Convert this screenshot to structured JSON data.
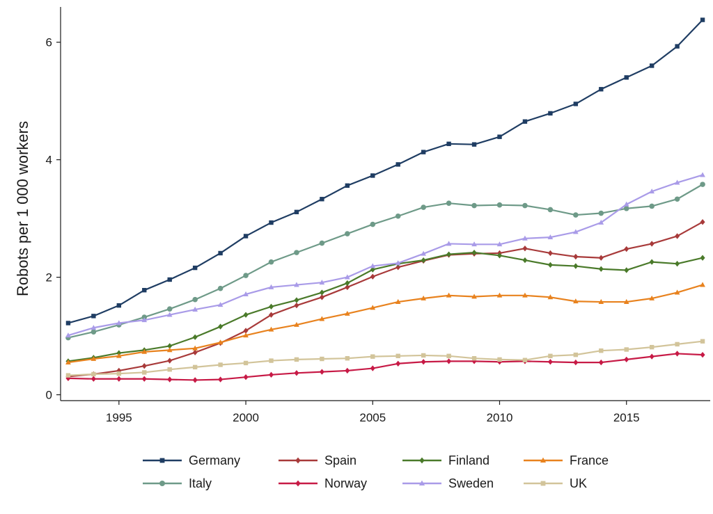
{
  "chart_data": {
    "type": "line",
    "title": "",
    "xlabel": "",
    "ylabel": "Robots per 1 000 workers",
    "xlim": [
      1992.7,
      2018.3
    ],
    "ylim": [
      -0.1,
      6.6
    ],
    "x_ticks": [
      1995,
      2000,
      2005,
      2010,
      2015
    ],
    "y_ticks": [
      0,
      2,
      4,
      6
    ],
    "grid": false,
    "legend_position": "bottom",
    "x": [
      1993,
      1994,
      1995,
      1996,
      1997,
      1998,
      1999,
      2000,
      2001,
      2002,
      2003,
      2004,
      2005,
      2006,
      2007,
      2008,
      2009,
      2010,
      2011,
      2012,
      2013,
      2014,
      2015,
      2016,
      2017,
      2018
    ],
    "series": [
      {
        "name": "Germany",
        "color": "#1f3d63",
        "marker": "square",
        "values": [
          1.22,
          1.34,
          1.52,
          1.78,
          1.96,
          2.16,
          2.41,
          2.7,
          2.93,
          3.11,
          3.33,
          3.56,
          3.73,
          3.92,
          4.13,
          4.27,
          4.26,
          4.39,
          4.65,
          4.79,
          4.95,
          5.2,
          5.4,
          5.6,
          5.93,
          6.38
        ]
      },
      {
        "name": "Spain",
        "color": "#a83a3a",
        "marker": "diamond",
        "values": [
          0.31,
          0.35,
          0.41,
          0.49,
          0.58,
          0.72,
          0.88,
          1.09,
          1.36,
          1.52,
          1.66,
          1.83,
          2.01,
          2.17,
          2.28,
          2.38,
          2.4,
          2.41,
          2.49,
          2.41,
          2.35,
          2.33,
          2.48,
          2.57,
          2.7,
          2.94
        ]
      },
      {
        "name": "Finland",
        "color": "#4a7a2a",
        "marker": "diamond",
        "values": [
          0.57,
          0.63,
          0.71,
          0.76,
          0.83,
          0.98,
          1.16,
          1.36,
          1.5,
          1.61,
          1.74,
          1.9,
          2.13,
          2.23,
          2.29,
          2.39,
          2.42,
          2.37,
          2.29,
          2.21,
          2.19,
          2.14,
          2.12,
          2.26,
          2.23,
          2.33
        ]
      },
      {
        "name": "France",
        "color": "#e8821e",
        "marker": "triangle",
        "values": [
          0.55,
          0.61,
          0.66,
          0.73,
          0.76,
          0.79,
          0.89,
          1.01,
          1.11,
          1.19,
          1.29,
          1.38,
          1.48,
          1.58,
          1.64,
          1.69,
          1.67,
          1.69,
          1.69,
          1.66,
          1.59,
          1.58,
          1.58,
          1.64,
          1.74,
          1.87
        ]
      },
      {
        "name": "Italy",
        "color": "#6e9a88",
        "marker": "circle",
        "values": [
          0.97,
          1.07,
          1.19,
          1.32,
          1.46,
          1.62,
          1.81,
          2.03,
          2.26,
          2.42,
          2.58,
          2.74,
          2.9,
          3.04,
          3.19,
          3.26,
          3.22,
          3.23,
          3.22,
          3.15,
          3.06,
          3.09,
          3.17,
          3.21,
          3.33,
          3.58
        ]
      },
      {
        "name": "Norway",
        "color": "#c71a46",
        "marker": "diamond",
        "values": [
          0.28,
          0.27,
          0.27,
          0.27,
          0.26,
          0.25,
          0.26,
          0.3,
          0.34,
          0.37,
          0.39,
          0.41,
          0.45,
          0.53,
          0.56,
          0.57,
          0.57,
          0.56,
          0.57,
          0.56,
          0.55,
          0.55,
          0.6,
          0.65,
          0.7,
          0.68
        ]
      },
      {
        "name": "Sweden",
        "color": "#a99be8",
        "marker": "triangle",
        "values": [
          1.01,
          1.14,
          1.22,
          1.27,
          1.36,
          1.45,
          1.53,
          1.71,
          1.83,
          1.87,
          1.91,
          2.0,
          2.19,
          2.24,
          2.4,
          2.57,
          2.56,
          2.56,
          2.66,
          2.68,
          2.77,
          2.93,
          3.24,
          3.46,
          3.61,
          3.74
        ]
      },
      {
        "name": "UK",
        "color": "#d2c49a",
        "marker": "square",
        "values": [
          0.33,
          0.35,
          0.36,
          0.38,
          0.43,
          0.47,
          0.51,
          0.54,
          0.58,
          0.6,
          0.61,
          0.62,
          0.65,
          0.66,
          0.67,
          0.66,
          0.62,
          0.6,
          0.59,
          0.66,
          0.68,
          0.75,
          0.77,
          0.81,
          0.86,
          0.91
        ]
      }
    ]
  }
}
